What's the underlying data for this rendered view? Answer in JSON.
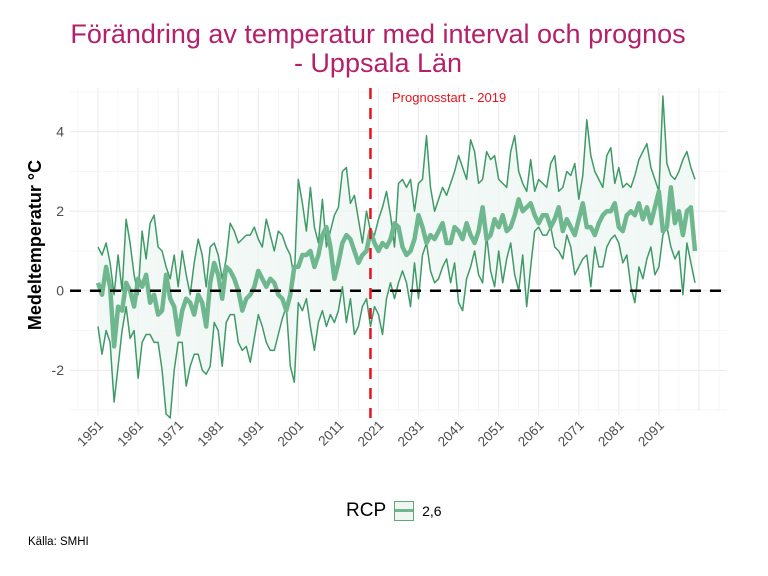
{
  "title_lines": [
    "Förändring av temperatur med interval och prognos",
    "- Uppsala Län"
  ],
  "caption": "Källa: SMHI",
  "legend": {
    "title": "RCP",
    "items": [
      {
        "label": "2,6"
      }
    ]
  },
  "colors": {
    "title": "#b5206a",
    "line": "#3f9a68",
    "mean": "#6fb78e",
    "ribbon": "#eef5f1",
    "vline": "#e8121c",
    "hline": "#000000"
  },
  "chart_data": {
    "type": "line",
    "title": "Förändring av temperatur med interval och prognos - Uppsala Län",
    "xlabel": "",
    "ylabel": "Medeltemperatur °C",
    "xlim": [
      1944,
      2108
    ],
    "ylim": [
      -3.0,
      5.1
    ],
    "grid": true,
    "x_ticks": [
      1951,
      1961,
      1971,
      1981,
      1991,
      2001,
      2011,
      2021,
      2031,
      2041,
      2051,
      2061,
      2071,
      2081,
      2091
    ],
    "y_ticks": [
      -2,
      0,
      2,
      4
    ],
    "legend_position": "bottom",
    "reference_lines": [
      {
        "type": "horizontal",
        "value": 0,
        "style": "dashed",
        "color": "#000000"
      },
      {
        "type": "vertical",
        "value": 2019,
        "style": "dashed",
        "color": "#e8121c",
        "label": "Prognosstart - 2019"
      }
    ],
    "x_start": 1951,
    "x_end": 2100,
    "series": [
      {
        "name": "Upper",
        "values": [
          1.1,
          0.9,
          1.2,
          0.7,
          -0.1,
          0.9,
          0.0,
          1.8,
          1.2,
          0.4,
          -0.1,
          1.5,
          0.8,
          1.7,
          1.9,
          1.1,
          1.0,
          0.6,
          0.3,
          0.9,
          0.1,
          1.0,
          0.4,
          -0.1,
          0.7,
          1.3,
          0.9,
          0.1,
          1.1,
          1.2,
          0.9,
          0.3,
          0.8,
          1.7,
          1.5,
          1.2,
          1.3,
          1.4,
          1.4,
          1.6,
          1.3,
          1.1,
          1.8,
          1.4,
          1.0,
          1.5,
          1.4,
          1.1,
          0.9,
          0.3,
          2.8,
          2.2,
          1.5,
          2.6,
          1.6,
          1.2,
          2.3,
          1.1,
          1.5,
          1.9,
          2.1,
          3.0,
          3.1,
          2.2,
          2.4,
          1.8,
          1.2,
          2.0,
          1.5,
          1.4,
          1.8,
          2.1,
          2.5,
          1.9,
          1.1,
          2.7,
          2.8,
          2.6,
          2.8,
          2.0,
          2.7,
          2.8,
          3.9,
          2.6,
          2.0,
          2.3,
          2.6,
          2.4,
          2.7,
          3.0,
          3.4,
          3.1,
          2.8,
          3.8,
          3.5,
          2.7,
          2.8,
          3.5,
          3.3,
          3.4,
          2.8,
          2.7,
          2.6,
          3.5,
          3.9,
          3.0,
          2.7,
          2.5,
          3.3,
          2.5,
          2.8,
          2.7,
          2.6,
          3.2,
          3.4,
          2.5,
          2.6,
          3.0,
          2.9,
          3.2,
          2.3,
          2.9,
          4.3,
          3.4,
          3.0,
          2.8,
          2.6,
          3.4,
          3.6,
          2.7,
          3.1,
          2.6,
          2.7,
          2.6,
          2.9,
          3.3,
          3.5,
          3.7,
          3.1,
          2.8,
          2.5,
          4.9,
          3.2,
          2.9,
          2.8,
          3.0,
          3.3,
          3.5,
          3.1,
          2.8,
          3.6,
          3.2,
          2.8,
          3.1,
          2.4
        ]
      },
      {
        "name": "Mean",
        "values": [
          0.2,
          -0.1,
          0.6,
          0.1,
          -1.4,
          -0.4,
          -0.5,
          0.2,
          0.0,
          -0.4,
          0.3,
          0.1,
          0.4,
          -0.3,
          -0.1,
          -0.6,
          -0.5,
          0.4,
          -0.2,
          -0.4,
          -1.1,
          -0.5,
          -0.2,
          -0.3,
          -0.6,
          -0.1,
          -0.3,
          -0.9,
          0.2,
          0.7,
          0.4,
          -0.2,
          0.6,
          0.5,
          0.3,
          0.0,
          -0.5,
          -0.2,
          -0.1,
          0.1,
          0.5,
          0.3,
          0.1,
          0.3,
          0.2,
          -0.1,
          -0.2,
          -0.5,
          -0.1,
          0.6,
          0.6,
          0.9,
          0.9,
          1.0,
          0.6,
          0.9,
          1.4,
          1.6,
          1.1,
          0.3,
          0.7,
          1.2,
          1.4,
          1.3,
          1.0,
          0.7,
          0.9,
          1.0,
          1.5,
          1.2,
          1.0,
          1.2,
          1.1,
          1.3,
          1.7,
          1.6,
          1.1,
          0.9,
          1.0,
          1.3,
          1.9,
          1.6,
          1.2,
          1.4,
          1.3,
          1.5,
          1.7,
          1.2,
          1.2,
          1.6,
          1.5,
          1.3,
          1.7,
          1.4,
          1.2,
          1.5,
          2.1,
          1.3,
          1.4,
          1.8,
          1.6,
          1.9,
          1.5,
          1.6,
          1.9,
          2.3,
          2.0,
          2.1,
          2.2,
          1.9,
          1.7,
          1.9,
          1.9,
          1.6,
          1.8,
          2.1,
          1.5,
          1.8,
          1.6,
          1.4,
          1.8,
          2.2,
          1.6,
          1.6,
          1.4,
          1.7,
          1.9,
          2.0,
          2.0,
          2.2,
          1.6,
          1.5,
          1.9,
          2.0,
          1.9,
          2.2,
          1.8,
          2.1,
          1.7,
          2.1,
          2.5,
          1.5,
          1.6,
          2.6,
          1.7,
          2.0,
          1.4,
          2.0,
          2.1,
          1.0,
          1.5,
          2.0,
          1.7,
          1.7,
          2.1,
          1.8,
          2.0,
          1.7,
          1.7,
          2.0,
          2.0
        ]
      },
      {
        "name": "Lower",
        "values": [
          -0.9,
          -1.6,
          -1.0,
          -1.3,
          -2.8,
          -1.9,
          -1.0,
          -0.4,
          -1.2,
          -1.0,
          -2.2,
          -1.3,
          -1.1,
          -1.1,
          -1.3,
          -1.3,
          -2.0,
          -3.1,
          -3.2,
          -2.0,
          -1.3,
          -1.3,
          -2.4,
          -1.9,
          -1.6,
          -1.6,
          -2.0,
          -2.1,
          -1.9,
          -0.8,
          -1.0,
          -1.9,
          -0.8,
          -0.6,
          -0.6,
          -1.3,
          -1.5,
          -1.4,
          -1.8,
          -1.2,
          -0.6,
          -0.9,
          -1.3,
          -1.5,
          -1.5,
          -1.1,
          -0.7,
          -0.4,
          -1.9,
          -2.3,
          -0.3,
          -0.5,
          -0.2,
          -0.9,
          -1.5,
          -0.8,
          -0.5,
          -0.9,
          -0.6,
          -0.8,
          -0.5,
          0.1,
          -0.8,
          -0.2,
          -1.1,
          -0.9,
          -0.4,
          -0.2,
          -0.9,
          -0.4,
          -0.6,
          -1.1,
          -0.2,
          0.2,
          -0.2,
          0.2,
          0.5,
          0.2,
          -0.4,
          0.7,
          -0.2,
          0.9,
          1.2,
          0.5,
          0.2,
          0.3,
          0.6,
          0.8,
          0.2,
          0.7,
          -0.3,
          -0.5,
          0.3,
          0.6,
          1.0,
          0.4,
          0.2,
          1.4,
          0.5,
          0.1,
          1.0,
          0.2,
          0.8,
          1.2,
          0.4,
          0.0,
          0.9,
          -0.4,
          0.6,
          1.5,
          1.6,
          1.4,
          1.4,
          1.6,
          1.1,
          1.0,
          0.8,
          1.4,
          1.1,
          0.4,
          0.6,
          0.8,
          0.9,
          0.1,
          1.1,
          0.6,
          0.6,
          1.1,
          1.3,
          1.4,
          1.2,
          0.7,
          0.9,
          0.1,
          -0.3,
          0.6,
          0.3,
          0.8,
          1.1,
          0.4,
          0.6,
          1.4,
          1.6,
          1.1,
          0.8,
          1.0,
          -0.1,
          1.2,
          0.7,
          0.2,
          1.5,
          1.0,
          0.5,
          0.4,
          0.6,
          0.8,
          1.0
        ]
      }
    ]
  }
}
